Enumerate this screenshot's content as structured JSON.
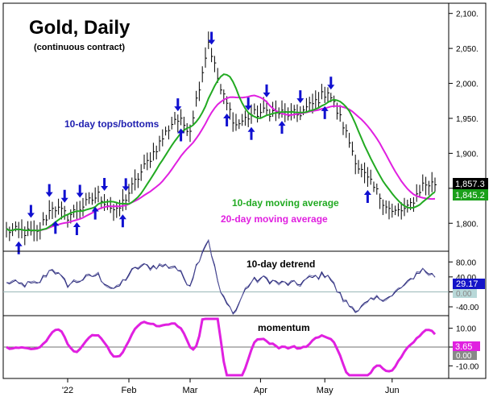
{
  "chart_data": [
    {
      "type": "ohlc",
      "title": "Gold, Daily",
      "subtitle": "(continuous contract)",
      "ylim": [
        1760,
        2110
      ],
      "yticks": [
        1800,
        1850,
        1900,
        1950,
        2000,
        2050,
        2100
      ],
      "ytick_labels": [
        "1,800.",
        "1,850.",
        "1,900.",
        "1,950.",
        "2,000.",
        "2,050.",
        "2,100."
      ],
      "last_price_label": "1,857.3",
      "ma10_label": "1,845.2",
      "annotations": [
        "10-day tops/bottoms",
        "10-day moving average",
        "20-day moving average"
      ],
      "anchors": [
        [
          0,
          1790
        ],
        [
          10,
          1785
        ],
        [
          15,
          1825
        ],
        [
          20,
          1810
        ],
        [
          30,
          1840
        ],
        [
          36,
          1815
        ],
        [
          45,
          1880
        ],
        [
          55,
          1950
        ],
        [
          60,
          1935
        ],
        [
          66,
          2060
        ],
        [
          70,
          1990
        ],
        [
          75,
          1940
        ],
        [
          80,
          1955
        ],
        [
          85,
          1960
        ],
        [
          95,
          1955
        ],
        [
          100,
          1970
        ],
        [
          105,
          1990
        ],
        [
          110,
          1940
        ],
        [
          115,
          1880
        ],
        [
          120,
          1850
        ],
        [
          126,
          1815
        ],
        [
          131,
          1820
        ],
        [
          136,
          1855
        ],
        [
          140,
          1857
        ]
      ],
      "tops": [
        8,
        14,
        19,
        24,
        32,
        39,
        56,
        67,
        79,
        85,
        96,
        106
      ],
      "bottoms": [
        4,
        16,
        23,
        29,
        38,
        57,
        72,
        80,
        90,
        104,
        118
      ],
      "colors": {
        "bars": "#000000",
        "ma10": "#22aa22",
        "ma20": "#e020e0",
        "tops": "#1010d0",
        "bottoms": "#1010d0",
        "ma10_label_bg": "#1aa01a",
        "price_label_bg": "#000000",
        "annotation_blue": "#2020b0"
      }
    },
    {
      "type": "line",
      "title": "10-day detrend",
      "ylim": [
        -55,
        100
      ],
      "yticks": [
        -40,
        0,
        40,
        80
      ],
      "ytick_labels": [
        "-40.00",
        "0.00",
        "40.00",
        "80.00"
      ],
      "zero_line": true,
      "last_value_label": "29.17",
      "grey_value_label": "0.00",
      "colors": {
        "line": "#1a1a6e",
        "zero": "#9ab8b8",
        "value_label_bg": "#1414c8"
      }
    },
    {
      "type": "line",
      "title": "momentum",
      "ylim": [
        -15,
        15
      ],
      "yticks": [
        -10,
        0,
        10
      ],
      "ytick_labels": [
        "-10.00",
        "0.00",
        "10.00"
      ],
      "zero_line": true,
      "last_value_label": "3.65",
      "grey_value_label": "0.00",
      "colors": {
        "line": "#e020e0",
        "zero": "#707070",
        "value_label_bg": "#e020e0"
      }
    }
  ],
  "x_axis": {
    "n_days": 141,
    "ticks": [
      {
        "day": 20,
        "label": "'22"
      },
      {
        "day": 40,
        "label": "Feb"
      },
      {
        "day": 60,
        "label": "Mar"
      },
      {
        "day": 83,
        "label": "Apr"
      },
      {
        "day": 104,
        "label": "May"
      },
      {
        "day": 126,
        "label": "Jun"
      }
    ]
  }
}
